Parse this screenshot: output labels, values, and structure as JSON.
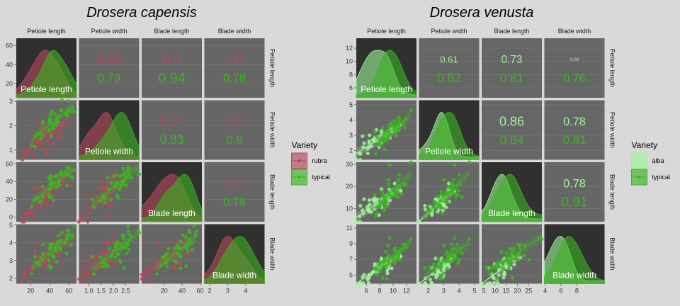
{
  "colors": {
    "background": "#d9d9d9",
    "panel": "#666666",
    "diag_panel": "#303030",
    "rubra": "#b5495b",
    "typical": "#3cb521",
    "alba": "#9ff59a"
  },
  "chart_data": [
    {
      "type": "scatter-matrix",
      "title": "Drosera capensis",
      "variables": [
        "Petiole length",
        "Petiole width",
        "Blade length",
        "Blade width"
      ],
      "ranges": [
        [
          5,
          68
        ],
        [
          0.6,
          3.05
        ],
        [
          -5,
          62
        ],
        [
          1.7,
          5.05
        ]
      ],
      "ticks": [
        [
          20,
          40,
          60
        ],
        [
          1,
          2,
          3
        ],
        [
          0,
          20,
          40,
          60
        ],
        [
          2,
          3,
          4,
          5
        ]
      ],
      "x_tick_labels": [
        [
          "20",
          "40",
          "60"
        ],
        [
          "1.0",
          "1.5",
          "2.0",
          "2.5"
        ],
        [
          "20",
          "40",
          "60"
        ],
        [
          "2",
          "3",
          "4"
        ]
      ],
      "x_tick_values": [
        [
          20,
          40,
          60
        ],
        [
          1.0,
          1.5,
          2.0,
          2.5
        ],
        [
          20,
          40,
          60
        ],
        [
          2,
          3,
          4
        ]
      ],
      "legend": {
        "title": "Variety",
        "position": "right"
      },
      "series": [
        {
          "name": "rubra",
          "color": "#b5495b",
          "means": [
            35,
            1.55,
            25,
            3.2
          ],
          "sds": [
            14,
            0.5,
            15,
            0.7
          ],
          "corr_shape": "diagonal-linear",
          "n": 45,
          "correlations": [
            [
              "0.86",
              "0.9",
              "0.67"
            ],
            [
              "0.91",
              "0.53"
            ],
            [
              "0.56"
            ]
          ]
        },
        {
          "name": "typical",
          "color": "#3cb521",
          "means": [
            42,
            2.1,
            35,
            3.6
          ],
          "sds": [
            13,
            0.55,
            14,
            0.75
          ],
          "corr_shape": "diagonal-linear",
          "n": 45,
          "correlations": [
            [
              "0.79",
              "0.94",
              "0.78"
            ],
            [
              "0.83",
              "0.8"
            ],
            [
              "0.78"
            ]
          ]
        }
      ]
    },
    {
      "type": "scatter-matrix",
      "title": "Drosera venusta",
      "variables": [
        "Petiole length",
        "Petiole width",
        "Blade length",
        "Blade width"
      ],
      "ranges": [
        [
          4.5,
          13.5
        ],
        [
          1.4,
          5.3
        ],
        [
          4,
          31
        ],
        [
          3.9,
          11.5
        ]
      ],
      "ticks": [
        [
          6,
          8,
          10,
          12
        ],
        [
          2,
          3,
          4,
          5
        ],
        [
          10,
          20,
          30
        ],
        [
          5,
          7,
          9,
          11
        ]
      ],
      "x_tick_labels": [
        [
          "6",
          "8",
          "10",
          "12"
        ],
        [
          "2",
          "3",
          "4",
          "5"
        ],
        [
          "5",
          "10",
          "15",
          "20",
          "25"
        ],
        [
          "4",
          "6",
          "8"
        ]
      ],
      "x_tick_values": [
        [
          6,
          8,
          10,
          12
        ],
        [
          2,
          3,
          4,
          5
        ],
        [
          5,
          10,
          15,
          20,
          25
        ],
        [
          4,
          6,
          8
        ]
      ],
      "legend": {
        "title": "Variety",
        "position": "right"
      },
      "series": [
        {
          "name": "alba",
          "color": "#9ff59a",
          "means": [
            8,
            2.8,
            13,
            5.8
          ],
          "sds": [
            1.6,
            0.6,
            5,
            1.4
          ],
          "n": 40,
          "correlations": [
            [
              "0.61",
              "0.73",
              "0.08"
            ],
            [
              "0.86",
              "0.78"
            ],
            [
              "0.78"
            ]
          ]
        },
        {
          "name": "typical",
          "color": "#3cb521",
          "means": [
            9.5,
            3.3,
            17,
            7
          ],
          "sds": [
            1.7,
            0.75,
            6,
            1.5
          ],
          "n": 40,
          "correlations": [
            [
              "0.82",
              "0.81",
              "0.76"
            ],
            [
              "0.84",
              "0.81"
            ],
            [
              "0.91"
            ]
          ]
        }
      ]
    }
  ]
}
